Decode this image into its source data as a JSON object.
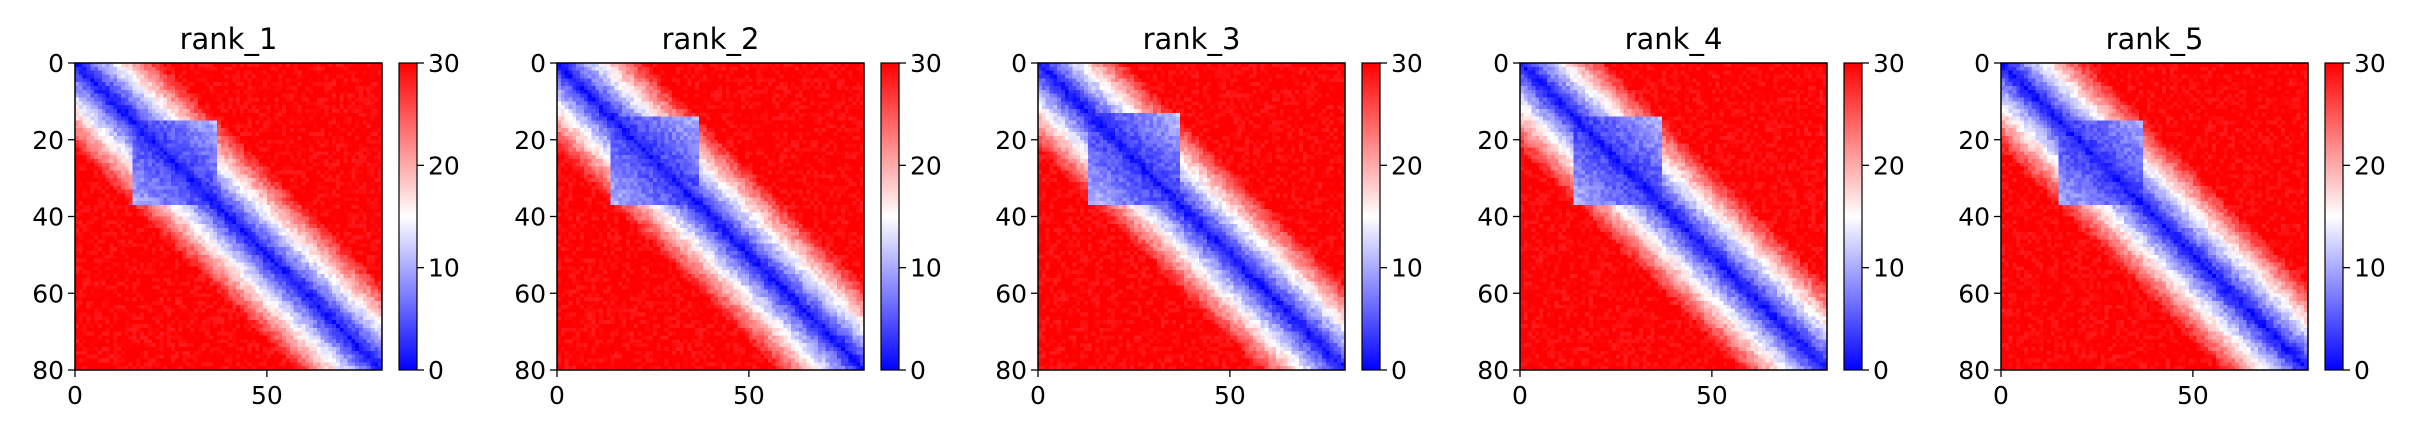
{
  "chart_data": [
    {
      "type": "heatmap",
      "title": "rank_1",
      "x_ticks": [
        "0",
        "50"
      ],
      "y_ticks": [
        "0",
        "20",
        "40",
        "60",
        "80"
      ],
      "xlim": [
        0,
        80
      ],
      "ylim": [
        80,
        0
      ],
      "colorbar": {
        "ticks": [
          "0",
          "10",
          "20",
          "30"
        ],
        "range": [
          0,
          30
        ],
        "colormap": "bwr"
      },
      "matrix_size": 80,
      "low_block": [
        15,
        36
      ],
      "values_description": "pairwise values near 0 on the diagonal, low (blue) within residues 15-36, rising to 30 (red) far from the diagonal"
    },
    {
      "type": "heatmap",
      "title": "rank_2",
      "x_ticks": [
        "0",
        "50"
      ],
      "y_ticks": [
        "0",
        "20",
        "40",
        "60",
        "80"
      ],
      "xlim": [
        0,
        80
      ],
      "ylim": [
        80,
        0
      ],
      "colorbar": {
        "ticks": [
          "0",
          "10",
          "20",
          "30"
        ],
        "range": [
          0,
          30
        ],
        "colormap": "bwr"
      },
      "matrix_size": 80,
      "low_block": [
        14,
        36
      ]
    },
    {
      "type": "heatmap",
      "title": "rank_3",
      "x_ticks": [
        "0",
        "50"
      ],
      "y_ticks": [
        "0",
        "20",
        "40",
        "60",
        "80"
      ],
      "xlim": [
        0,
        80
      ],
      "ylim": [
        80,
        0
      ],
      "colorbar": {
        "ticks": [
          "0",
          "10",
          "20",
          "30"
        ],
        "range": [
          0,
          30
        ],
        "colormap": "bwr"
      },
      "matrix_size": 80,
      "low_block": [
        13,
        36
      ]
    },
    {
      "type": "heatmap",
      "title": "rank_4",
      "x_ticks": [
        "0",
        "50"
      ],
      "y_ticks": [
        "0",
        "20",
        "40",
        "60",
        "80"
      ],
      "xlim": [
        0,
        80
      ],
      "ylim": [
        80,
        0
      ],
      "colorbar": {
        "ticks": [
          "0",
          "10",
          "20",
          "30"
        ],
        "range": [
          0,
          30
        ],
        "colormap": "bwr"
      },
      "matrix_size": 80,
      "low_block": [
        14,
        36
      ]
    },
    {
      "type": "heatmap",
      "title": "rank_5",
      "x_ticks": [
        "0",
        "50"
      ],
      "y_ticks": [
        "0",
        "20",
        "40",
        "60",
        "80"
      ],
      "xlim": [
        0,
        80
      ],
      "ylim": [
        80,
        0
      ],
      "colorbar": {
        "ticks": [
          "0",
          "10",
          "20",
          "30"
        ],
        "range": [
          0,
          30
        ],
        "colormap": "bwr"
      },
      "matrix_size": 80,
      "low_block": [
        15,
        36
      ]
    }
  ]
}
